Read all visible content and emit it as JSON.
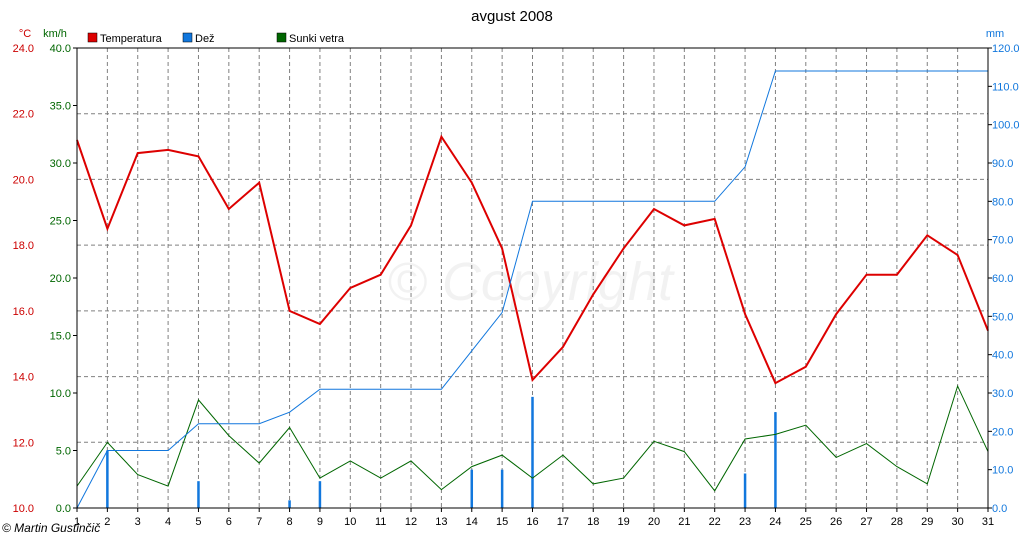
{
  "chart_data": {
    "type": "line",
    "title": "avgust 2008",
    "left_unit_temp": "°C",
    "left_unit_wind": "km/h",
    "right_unit_rain": "mm",
    "legend": [
      {
        "label": "Temperatura",
        "color": "#dd0000"
      },
      {
        "label": "Dež",
        "color": "#1177dd"
      },
      {
        "label": "Sunki vetra",
        "color": "#006600"
      }
    ],
    "x": [
      1,
      2,
      3,
      4,
      5,
      6,
      7,
      8,
      9,
      10,
      11,
      12,
      13,
      14,
      15,
      16,
      17,
      18,
      19,
      20,
      21,
      22,
      23,
      24,
      25,
      26,
      27,
      28,
      29,
      30,
      31
    ],
    "axes": {
      "temp": {
        "min": 10,
        "max": 24,
        "ticks": [
          "24.0",
          "22.0",
          "20.0",
          "18.0",
          "16.0",
          "14.0",
          "12.0",
          "10.0"
        ],
        "values": [
          24,
          22,
          20,
          18,
          16,
          14,
          12,
          10
        ],
        "color": "#cc0000"
      },
      "wind": {
        "min": 0,
        "max": 40,
        "ticks": [
          "40.0",
          "35.0",
          "30.0",
          "25.0",
          "20.0",
          "15.0",
          "10.0",
          "5.0",
          "0.0"
        ],
        "values": [
          40,
          35,
          30,
          25,
          20,
          15,
          10,
          5,
          0
        ],
        "color": "#006600"
      },
      "rain": {
        "min": 0,
        "max": 120,
        "ticks": [
          "120.0",
          "110.0",
          "100.0",
          "90.0",
          "80.0",
          "70.0",
          "60.0",
          "50.0",
          "40.0",
          "30.0",
          "20.0",
          "10.0",
          "0.0"
        ],
        "values": [
          120,
          110,
          100,
          90,
          80,
          70,
          60,
          50,
          40,
          30,
          20,
          10,
          0
        ],
        "color": "#1177dd"
      }
    },
    "series": [
      {
        "name": "Temperatura",
        "axis": "temp",
        "color": "#dd0000",
        "values": [
          21.2,
          18.5,
          20.8,
          20.9,
          20.7,
          19.1,
          19.9,
          16.0,
          15.6,
          16.7,
          17.1,
          18.6,
          21.3,
          19.9,
          17.9,
          13.9,
          14.9,
          16.5,
          17.9,
          19.1,
          18.6,
          18.8,
          15.9,
          13.8,
          14.3,
          15.9,
          17.1,
          17.1,
          18.3,
          17.7,
          15.4
        ]
      },
      {
        "name": "Sunki vetra",
        "axis": "wind",
        "color": "#006600",
        "values": [
          1.9,
          5.7,
          2.9,
          1.9,
          9.4,
          6.3,
          3.9,
          7.0,
          2.6,
          4.1,
          2.6,
          4.1,
          1.6,
          3.6,
          4.6,
          2.6,
          4.6,
          2.1,
          2.6,
          5.8,
          4.9,
          1.5,
          6.0,
          6.4,
          7.2,
          4.4,
          5.6,
          3.6,
          2.1,
          10.6,
          4.9
        ]
      },
      {
        "name": "Dež (kumulativno)",
        "axis": "rain",
        "color": "#1177dd",
        "values": [
          0,
          15,
          15,
          15,
          22,
          22,
          22,
          25,
          31,
          31,
          31,
          31,
          31,
          41,
          51,
          80,
          80,
          80,
          80,
          80,
          80,
          80,
          89,
          114,
          114,
          114,
          114,
          114,
          114,
          114,
          114
        ]
      },
      {
        "name": "Dež",
        "axis": "rain",
        "type": "bar",
        "color": "#1177dd",
        "values": [
          0,
          15,
          0,
          0,
          7,
          0,
          0,
          2,
          7,
          0,
          0,
          0,
          0,
          10,
          10,
          29,
          0,
          0,
          0,
          0,
          0,
          0,
          9,
          25,
          0,
          0,
          0,
          0,
          0,
          0,
          0
        ]
      }
    ],
    "grid": true,
    "legend_position": "top-left"
  },
  "watermark": "© Copyright",
  "credit": "© Martin Gustinčič"
}
